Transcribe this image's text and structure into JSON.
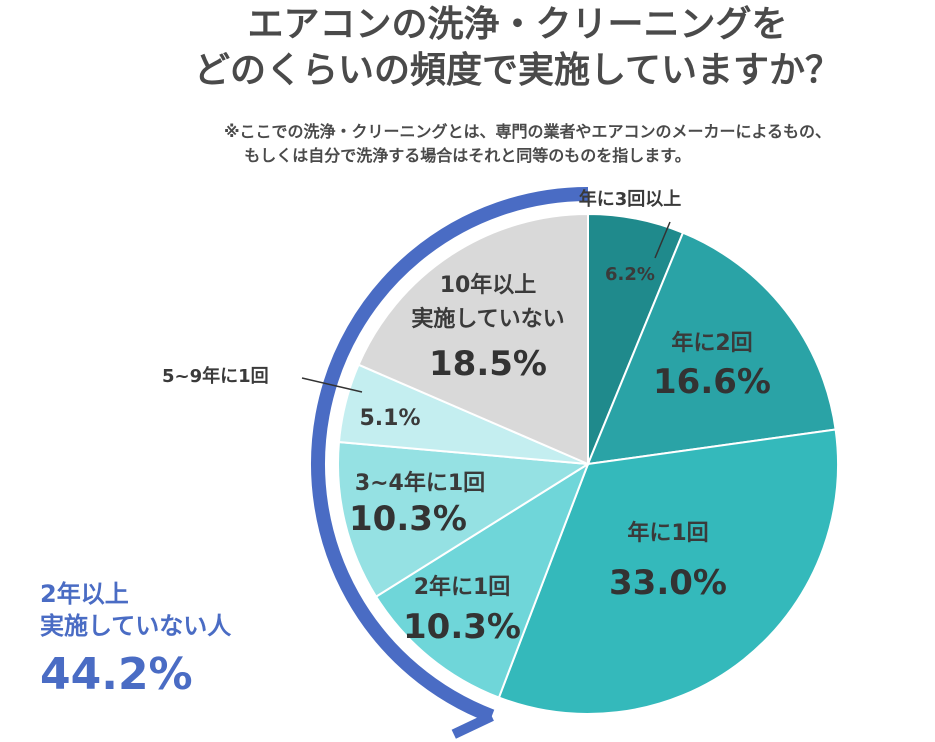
{
  "title_line1": "エアコンの洗浄・クリーニングを",
  "title_line2": "どのくらいの頻度で実施していますか？",
  "note_line1": "※ここでの洗浄・クリーニングとは、専門の業者やエアコンのメーカーによるもの、",
  "note_line2": "もしくは自分で洗浄する場合はそれと同等のものを指します。",
  "callout": {
    "label_line1": "2年以上",
    "label_line2": "実施していない人",
    "value": "44.2%"
  },
  "colors": {
    "highlight_arc": "#4a6cc4",
    "text": "#3a3a3a"
  },
  "chart_data": {
    "type": "pie",
    "slices": [
      {
        "label": "年に3回以上",
        "value": 6.2,
        "display": "6.2%",
        "color": "#1f8a8c"
      },
      {
        "label": "年に2回",
        "value": 16.6,
        "display": "16.6%",
        "color": "#2aa3a6"
      },
      {
        "label": "年に1回",
        "value": 33.0,
        "display": "33.0%",
        "color": "#34b9bb"
      },
      {
        "label": "2年に1回",
        "value": 10.3,
        "display": "10.3%",
        "color": "#6fd6d9"
      },
      {
        "label": "3~4年に1回",
        "value": 10.3,
        "display": "10.3%",
        "color": "#95e1e3"
      },
      {
        "label": "5~9年に1回",
        "value": 5.1,
        "display": "5.1%",
        "color": "#c4eef0"
      },
      {
        "label": "10年以上\n実施していない",
        "value": 18.5,
        "display": "18.5%",
        "color": "#d9d9d9"
      }
    ]
  }
}
